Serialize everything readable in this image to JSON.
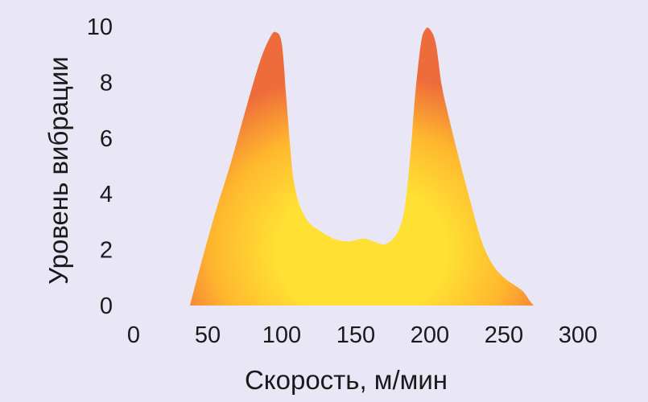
{
  "chart_data": {
    "type": "area",
    "title": "",
    "xlabel": "Скорость, м/мин",
    "ylabel": "Уровень вибрации",
    "xlim": [
      0,
      300
    ],
    "ylim": [
      0,
      10
    ],
    "x_ticks": [
      0,
      50,
      100,
      150,
      200,
      250,
      300
    ],
    "y_ticks": [
      0,
      2,
      4,
      6,
      8,
      10
    ],
    "grid": false,
    "legend": "none",
    "colors": {
      "background": "#e9e6f6",
      "fill_center": "#ffe033",
      "fill_mid": "#ffb72e",
      "fill_edge": "#ee6b3b"
    },
    "series": [
      {
        "x": [
          38,
          45,
          55,
          65,
          75,
          85,
          92,
          96,
          100,
          103,
          106,
          108,
          112,
          118,
          125,
          135,
          145,
          155,
          162,
          170,
          178,
          183,
          187,
          190,
          194,
          197,
          200,
          204,
          208,
          213,
          220,
          228,
          235,
          242,
          250,
          258,
          263,
          267,
          270
        ],
        "y": [
          0,
          1.4,
          3.3,
          5.0,
          6.9,
          8.7,
          9.6,
          9.8,
          9.4,
          7.5,
          5.5,
          4.5,
          3.6,
          3.0,
          2.7,
          2.4,
          2.3,
          2.4,
          2.3,
          2.2,
          2.6,
          3.5,
          5.5,
          7.5,
          9.4,
          9.9,
          9.9,
          9.4,
          7.9,
          6.7,
          5.2,
          3.6,
          2.3,
          1.5,
          1.0,
          0.7,
          0.5,
          0.2,
          0
        ]
      }
    ]
  }
}
